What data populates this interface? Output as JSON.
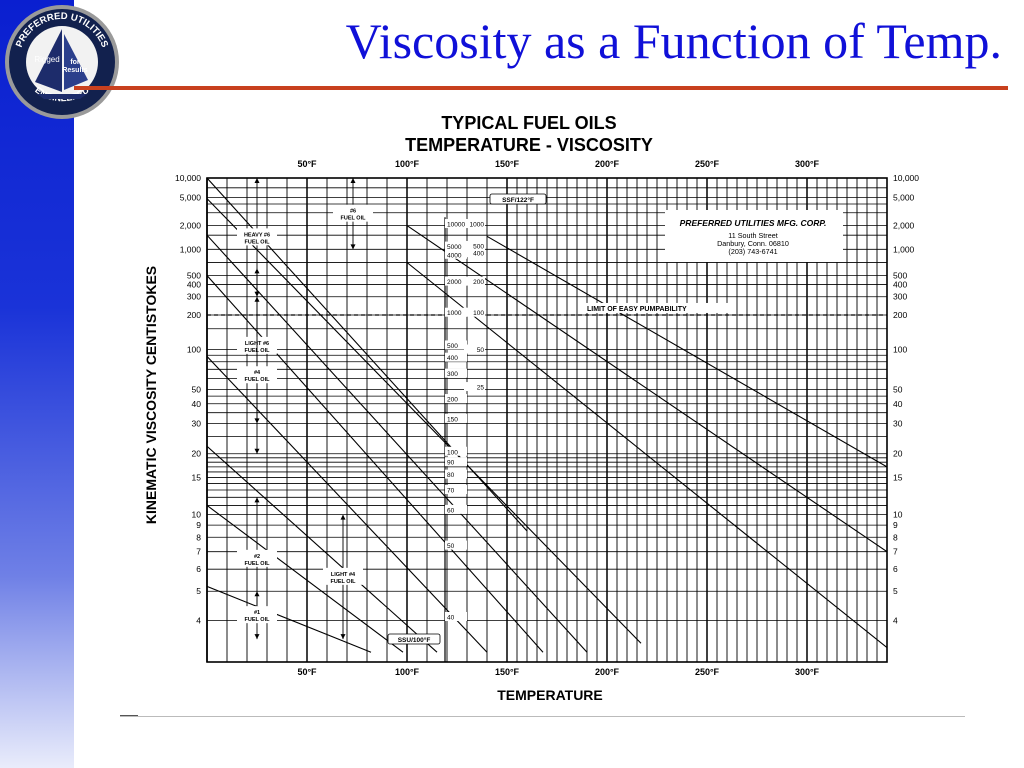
{
  "slide": {
    "title": "Viscosity as a Function of Temp.",
    "logo": {
      "ring_top": "PREFERRED UTILITIES",
      "ring_bottom": "ENGINEERED",
      "inner_left": "Rigged",
      "inner_right_1": "for",
      "inner_right_2": "Results"
    },
    "colors": {
      "sidebar_top": "#0a1fd0",
      "title": "#1010d8",
      "rule": "#c8401e"
    }
  },
  "chart_data": {
    "type": "line",
    "title": "TYPICAL FUEL OILS",
    "subtitle": "TEMPERATURE - VISCOSITY",
    "xlabel": "TEMPERATURE",
    "ylabel": "KINEMATIC VISCOSITY CENTISTOKES",
    "x_scale": "linear",
    "y_scale": "viscosity-temperature (log-log)",
    "xlim": [
      0,
      340
    ],
    "ylim": [
      3,
      10000
    ],
    "grid": true,
    "x_ticks": [
      50,
      100,
      150,
      200,
      250,
      300
    ],
    "x_tick_labels": [
      "50°F",
      "100°F",
      "150°F",
      "200°F",
      "250°F",
      "300°F"
    ],
    "y_ticks": [
      10000,
      5000,
      2000,
      1000,
      500,
      400,
      300,
      200,
      100,
      50,
      40,
      30,
      20,
      15,
      10,
      9,
      8,
      7,
      6,
      5,
      4
    ],
    "y_tick_labels": [
      "10,000",
      "5,000",
      "2,000",
      "1,000",
      "500",
      "400",
      "300",
      "200",
      "100",
      "50",
      "40",
      "30",
      "20",
      "15",
      "10",
      "9",
      "8",
      "7",
      "6",
      "5",
      "4"
    ],
    "series": [
      {
        "x": [
          0,
          160
        ],
        "y": [
          10000,
          8.5
        ]
      },
      {
        "x": [
          0,
          217
        ],
        "y": [
          4800,
          3.4
        ]
      },
      {
        "x": [
          0,
          190
        ],
        "y": [
          1500,
          3.2
        ]
      },
      {
        "x": [
          0,
          168
        ],
        "y": [
          500,
          3.2
        ]
      },
      {
        "x": [
          0,
          140
        ],
        "y": [
          88,
          3.2
        ]
      },
      {
        "x": [
          0,
          115
        ],
        "y": [
          22,
          3.2
        ]
      },
      {
        "x": [
          0,
          98
        ],
        "y": [
          11,
          3.2
        ]
      },
      {
        "x": [
          0,
          82
        ],
        "y": [
          5.2,
          3.2
        ]
      },
      {
        "x": [
          100,
          340
        ],
        "y": [
          2000,
          7
        ]
      },
      {
        "x": [
          100,
          340
        ],
        "y": [
          700,
          3.3
        ]
      },
      {
        "x": [
          140,
          340
        ],
        "y": [
          1450,
          17
        ]
      }
    ],
    "range_labels": [
      {
        "text": "HEAVY #6 FUEL OIL",
        "x": 25,
        "y_range": [
          10000,
          300
        ]
      },
      {
        "text": "#6 FUEL OIL",
        "x": 73,
        "y_range": [
          10000,
          1000
        ]
      },
      {
        "text": "LIGHT #6 FUEL OIL",
        "x": 25,
        "y_range": [
          600,
          30
        ]
      },
      {
        "text": "#4 FUEL OIL",
        "x": 25,
        "y_range": [
          300,
          20
        ]
      },
      {
        "text": "#2 FUEL OIL",
        "x": 25,
        "y_range": [
          12,
          4
        ]
      },
      {
        "text": "LIGHT #4 FUEL OIL",
        "x": 68,
        "y_range": [
          10,
          3.5
        ]
      },
      {
        "text": "#1 FUEL OIL",
        "x": 25,
        "y_range": [
          5,
          3.5
        ]
      }
    ],
    "ssf_scale": {
      "label": "SSF/122°F",
      "ticks": [
        {
          "label": "1000",
          "cst": 2100
        },
        {
          "label": "500",
          "cst": 1100
        },
        {
          "label": "400",
          "cst": 900
        },
        {
          "label": "200",
          "cst": 430
        },
        {
          "label": "100",
          "cst": 210
        },
        {
          "label": "50",
          "cst": 100
        },
        {
          "label": "25",
          "cst": 52
        }
      ]
    },
    "ssu_scale": {
      "label": "SSU/100°F",
      "ticks": [
        {
          "label": "10000",
          "cst": 2100
        },
        {
          "label": "5000",
          "cst": 1080
        },
        {
          "label": "4000",
          "cst": 860
        },
        {
          "label": "2000",
          "cst": 430
        },
        {
          "label": "1000",
          "cst": 210
        },
        {
          "label": "500",
          "cst": 108
        },
        {
          "label": "400",
          "cst": 86
        },
        {
          "label": "300",
          "cst": 65
        },
        {
          "label": "200",
          "cst": 43
        },
        {
          "label": "150",
          "cst": 32
        },
        {
          "label": "100",
          "cst": 20.5
        },
        {
          "label": "90",
          "cst": 18
        },
        {
          "label": "80",
          "cst": 15.5
        },
        {
          "label": "70",
          "cst": 13
        },
        {
          "label": "60",
          "cst": 10.5
        },
        {
          "label": "50",
          "cst": 7.4
        },
        {
          "label": "40",
          "cst": 4.1
        }
      ]
    },
    "annotations": [
      {
        "text": "LIMIT OF EASY PUMPABILITY",
        "y": 200
      },
      {
        "text": "PREFERRED UTILITIES MFG. CORP.",
        "role": "company"
      },
      {
        "text": "11 South Street",
        "role": "address"
      },
      {
        "text": "Danbury, Conn. 06810",
        "role": "address"
      },
      {
        "text": "(203) 743-6741",
        "role": "address"
      }
    ]
  }
}
